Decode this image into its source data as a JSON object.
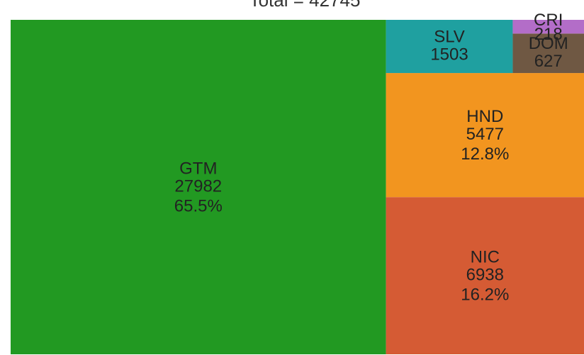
{
  "chart_data": {
    "type": "treemap",
    "title": "Total = 42745",
    "categories": [
      "GTM",
      "NIC",
      "HND",
      "SLV",
      "DOM",
      "CRI"
    ],
    "values": [
      27982,
      6938,
      5477,
      1503,
      627,
      218
    ],
    "percent_labels": [
      "65.5%",
      "16.2%",
      "12.8%",
      null,
      null,
      null
    ],
    "colors": [
      "#229922",
      "#d55b34",
      "#f2951f",
      "#1fa0a0",
      "#6f5843",
      "#b36dc8"
    ]
  }
}
